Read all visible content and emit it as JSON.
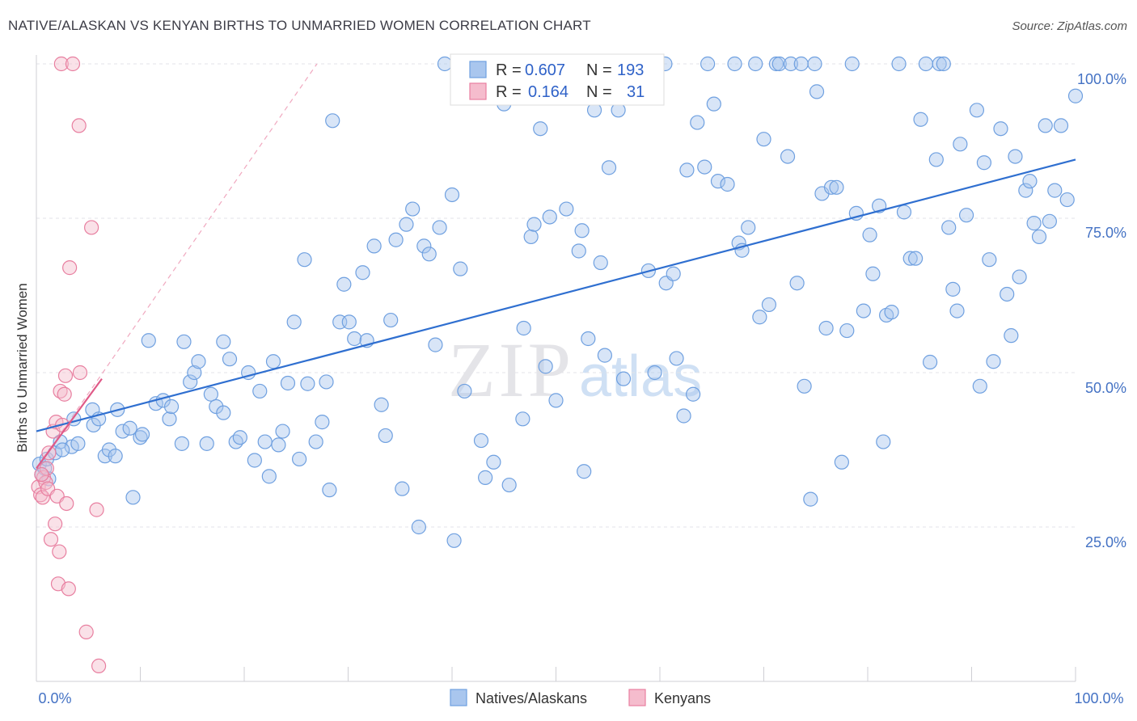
{
  "header": {
    "title": "NATIVE/ALASKAN VS KENYAN BIRTHS TO UNMARRIED WOMEN CORRELATION CHART",
    "source": "Source: ZipAtlas.com"
  },
  "colors": {
    "native": "#6fa0e0",
    "native_fill": "#a9c6ee",
    "native_line": "#2f6fd0",
    "kenyan": "#e87fa0",
    "kenyan_fill": "#f5bccd",
    "kenyan_line": "#e05a88",
    "grid": "#e3e3e8",
    "axis_label": "#4472c4"
  },
  "legend_top": {
    "row1": {
      "r_label": "R =",
      "r_value": "0.607",
      "n_label": "N =",
      "n_value": "193"
    },
    "row2": {
      "r_label": "R =",
      "r_value": "0.164",
      "n_label": "N =",
      "n_value": "31"
    }
  },
  "legend_bottom": {
    "native": "Natives/Alaskans",
    "kenyan": "Kenyans"
  },
  "watermark": {
    "zip": "ZIP",
    "atlas": "atlas"
  },
  "chart_data": {
    "type": "scatter",
    "title": "NATIVE/ALASKAN VS KENYAN BIRTHS TO UNMARRIED WOMEN CORRELATION CHART",
    "xlabel": "",
    "ylabel": "Births to Unmarried Women",
    "xlim": [
      0,
      100
    ],
    "ylim": [
      0,
      100
    ],
    "x_tick_labels": {
      "left": "0.0%",
      "right": "100.0%"
    },
    "y_ticks": [
      {
        "value": 25,
        "label": "25.0%"
      },
      {
        "value": 50,
        "label": "50.0%"
      },
      {
        "value": 75,
        "label": "75.0%"
      },
      {
        "value": 100,
        "label": "100.0%"
      }
    ],
    "grid": true,
    "series": [
      {
        "name": "Natives/Alaskans",
        "R": 0.607,
        "N": 193,
        "trend": {
          "x0": 0,
          "y0": 40.5,
          "x1": 100,
          "y1": 84.5
        },
        "points": [
          [
            0.3,
            35.2
          ],
          [
            0.5,
            33.5
          ],
          [
            0.8,
            34.5
          ],
          [
            1.0,
            36.0
          ],
          [
            1.2,
            32.8
          ],
          [
            1.8,
            37.0
          ],
          [
            2.3,
            38.8
          ],
          [
            3.4,
            38.0
          ],
          [
            3.6,
            42.5
          ],
          [
            2.5,
            37.5
          ],
          [
            4.0,
            38.5
          ],
          [
            5.5,
            41.5
          ],
          [
            5.4,
            44.0
          ],
          [
            6.0,
            42.5
          ],
          [
            6.6,
            36.5
          ],
          [
            7.0,
            37.5
          ],
          [
            7.6,
            36.5
          ],
          [
            7.8,
            44.0
          ],
          [
            8.3,
            40.5
          ],
          [
            9.0,
            41.0
          ],
          [
            9.3,
            29.8
          ],
          [
            10.0,
            39.5
          ],
          [
            10.2,
            40.0
          ],
          [
            10.8,
            55.2
          ],
          [
            11.5,
            45.0
          ],
          [
            12.2,
            45.5
          ],
          [
            12.8,
            42.5
          ],
          [
            13.0,
            44.5
          ],
          [
            14.0,
            38.5
          ],
          [
            14.2,
            55.0
          ],
          [
            14.8,
            48.5
          ],
          [
            15.2,
            50.0
          ],
          [
            15.6,
            51.8
          ],
          [
            16.4,
            38.5
          ],
          [
            16.8,
            46.5
          ],
          [
            17.3,
            44.5
          ],
          [
            18.0,
            43.5
          ],
          [
            18.0,
            55.0
          ],
          [
            18.6,
            52.2
          ],
          [
            19.2,
            38.8
          ],
          [
            19.6,
            39.5
          ],
          [
            20.4,
            50.0
          ],
          [
            21.0,
            35.8
          ],
          [
            21.5,
            47.0
          ],
          [
            22.0,
            38.8
          ],
          [
            22.4,
            33.2
          ],
          [
            22.8,
            51.8
          ],
          [
            23.3,
            38.3
          ],
          [
            23.7,
            40.5
          ],
          [
            24.2,
            48.3
          ],
          [
            24.8,
            58.2
          ],
          [
            25.3,
            36.0
          ],
          [
            25.8,
            68.3
          ],
          [
            26.1,
            48.2
          ],
          [
            26.9,
            38.8
          ],
          [
            27.5,
            42.0
          ],
          [
            27.9,
            48.5
          ],
          [
            28.2,
            31.0
          ],
          [
            28.5,
            90.8
          ],
          [
            29.2,
            58.2
          ],
          [
            29.6,
            64.3
          ],
          [
            30.1,
            58.2
          ],
          [
            30.6,
            55.5
          ],
          [
            31.4,
            66.2
          ],
          [
            31.8,
            55.2
          ],
          [
            32.5,
            70.5
          ],
          [
            33.2,
            44.8
          ],
          [
            33.6,
            39.8
          ],
          [
            34.1,
            58.5
          ],
          [
            34.6,
            71.5
          ],
          [
            35.2,
            31.2
          ],
          [
            35.6,
            74.0
          ],
          [
            36.2,
            76.5
          ],
          [
            36.8,
            25.0
          ],
          [
            37.3,
            70.5
          ],
          [
            37.8,
            69.2
          ],
          [
            38.4,
            54.5
          ],
          [
            38.8,
            73.5
          ],
          [
            39.3,
            100.0
          ],
          [
            40.0,
            78.8
          ],
          [
            40.2,
            22.8
          ],
          [
            40.8,
            66.8
          ],
          [
            41.2,
            47.0
          ],
          [
            42.8,
            39.0
          ],
          [
            43.2,
            33.0
          ],
          [
            44.0,
            35.5
          ],
          [
            44.9,
            97.5
          ],
          [
            45.0,
            93.5
          ],
          [
            45.5,
            31.8
          ],
          [
            46.5,
            100.0
          ],
          [
            46.8,
            42.5
          ],
          [
            46.9,
            57.2
          ],
          [
            47.6,
            72.0
          ],
          [
            47.9,
            74.0
          ],
          [
            48.5,
            89.5
          ],
          [
            49.0,
            51.0
          ],
          [
            49.4,
            75.2
          ],
          [
            50.0,
            45.5
          ],
          [
            51.0,
            76.5
          ],
          [
            51.8,
            100.0
          ],
          [
            52.2,
            69.7
          ],
          [
            52.5,
            73.0
          ],
          [
            52.7,
            34.0
          ],
          [
            53.1,
            55.5
          ],
          [
            53.7,
            92.5
          ],
          [
            54.3,
            67.8
          ],
          [
            54.7,
            52.8
          ],
          [
            55.1,
            83.2
          ],
          [
            55.7,
            100.0
          ],
          [
            56.0,
            92.5
          ],
          [
            56.5,
            49.0
          ],
          [
            57.2,
            100.0
          ],
          [
            57.5,
            100.0
          ],
          [
            58.0,
            100.0
          ],
          [
            58.6,
            100.0
          ],
          [
            58.9,
            66.5
          ],
          [
            59.5,
            50.0
          ],
          [
            60.5,
            100.0
          ],
          [
            60.6,
            64.5
          ],
          [
            61.3,
            66.0
          ],
          [
            61.6,
            52.3
          ],
          [
            62.3,
            43.0
          ],
          [
            62.6,
            82.8
          ],
          [
            63.2,
            46.5
          ],
          [
            63.6,
            90.5
          ],
          [
            64.3,
            83.3
          ],
          [
            64.6,
            100.0
          ],
          [
            65.2,
            93.5
          ],
          [
            65.6,
            81.0
          ],
          [
            66.5,
            80.5
          ],
          [
            67.2,
            100.0
          ],
          [
            67.6,
            71.0
          ],
          [
            67.9,
            69.8
          ],
          [
            68.5,
            73.5
          ],
          [
            69.2,
            100.0
          ],
          [
            69.6,
            59.0
          ],
          [
            70.0,
            87.8
          ],
          [
            70.5,
            61.0
          ],
          [
            71.2,
            100.0
          ],
          [
            71.5,
            100.0
          ],
          [
            72.3,
            85.0
          ],
          [
            72.6,
            100.0
          ],
          [
            73.2,
            64.5
          ],
          [
            73.6,
            100.0
          ],
          [
            73.9,
            47.8
          ],
          [
            74.5,
            29.5
          ],
          [
            74.9,
            100.0
          ],
          [
            75.1,
            95.5
          ],
          [
            75.6,
            79.0
          ],
          [
            76.0,
            57.2
          ],
          [
            76.5,
            80.0
          ],
          [
            77.0,
            80.0
          ],
          [
            77.5,
            35.5
          ],
          [
            78.0,
            56.8
          ],
          [
            78.5,
            100.0
          ],
          [
            78.9,
            75.8
          ],
          [
            79.6,
            60.0
          ],
          [
            80.2,
            72.3
          ],
          [
            80.5,
            66.0
          ],
          [
            81.1,
            77.0
          ],
          [
            81.5,
            38.8
          ],
          [
            81.8,
            59.3
          ],
          [
            82.3,
            59.8
          ],
          [
            83.0,
            100.0
          ],
          [
            83.5,
            76.0
          ],
          [
            84.1,
            68.5
          ],
          [
            84.6,
            68.5
          ],
          [
            85.1,
            91.0
          ],
          [
            85.6,
            100.0
          ],
          [
            86.0,
            51.7
          ],
          [
            86.6,
            84.5
          ],
          [
            86.9,
            100.0
          ],
          [
            87.3,
            100.0
          ],
          [
            87.8,
            73.5
          ],
          [
            88.2,
            63.5
          ],
          [
            88.6,
            60.0
          ],
          [
            88.9,
            87.0
          ],
          [
            89.5,
            75.5
          ],
          [
            90.5,
            92.5
          ],
          [
            90.8,
            47.8
          ],
          [
            91.2,
            84.0
          ],
          [
            91.7,
            68.3
          ],
          [
            92.1,
            51.8
          ],
          [
            92.8,
            89.5
          ],
          [
            93.4,
            62.7
          ],
          [
            93.8,
            56.0
          ],
          [
            94.2,
            85.0
          ],
          [
            94.6,
            65.5
          ],
          [
            95.2,
            79.5
          ],
          [
            95.6,
            81.0
          ],
          [
            96.0,
            74.2
          ],
          [
            96.5,
            72.0
          ],
          [
            97.1,
            90.0
          ],
          [
            97.5,
            74.5
          ],
          [
            98.0,
            79.5
          ],
          [
            98.6,
            90.0
          ],
          [
            99.2,
            78.0
          ],
          [
            100.0,
            94.8
          ]
        ]
      },
      {
        "name": "Kenyans",
        "R": 0.164,
        "N": 31,
        "trend": {
          "x0": 0,
          "y0": 34.5,
          "x1": 6.3,
          "y1": 49.0
        },
        "trend_extended": {
          "x0": 0,
          "y0": 34.5,
          "x1": 27.0,
          "y1": 100.0
        },
        "points": [
          [
            0.2,
            31.5
          ],
          [
            0.4,
            30.2
          ],
          [
            0.6,
            29.8
          ],
          [
            0.7,
            33.0
          ],
          [
            0.9,
            32.2
          ],
          [
            1.0,
            34.5
          ],
          [
            1.1,
            31.2
          ],
          [
            1.2,
            37.0
          ],
          [
            1.4,
            23.0
          ],
          [
            1.6,
            40.5
          ],
          [
            1.8,
            25.5
          ],
          [
            1.9,
            42.0
          ],
          [
            2.0,
            30.0
          ],
          [
            2.2,
            21.0
          ],
          [
            2.1,
            15.8
          ],
          [
            2.3,
            47.0
          ],
          [
            2.5,
            41.5
          ],
          [
            2.7,
            46.5
          ],
          [
            2.8,
            49.5
          ],
          [
            2.9,
            28.8
          ],
          [
            3.1,
            15.0
          ],
          [
            3.2,
            67.0
          ],
          [
            2.4,
            100.0
          ],
          [
            3.5,
            100.0
          ],
          [
            4.1,
            90.0
          ],
          [
            4.2,
            50.0
          ],
          [
            4.8,
            8.0
          ],
          [
            5.3,
            73.5
          ],
          [
            5.8,
            27.8
          ],
          [
            6.0,
            2.5
          ],
          [
            0.5,
            33.5
          ]
        ]
      }
    ]
  }
}
